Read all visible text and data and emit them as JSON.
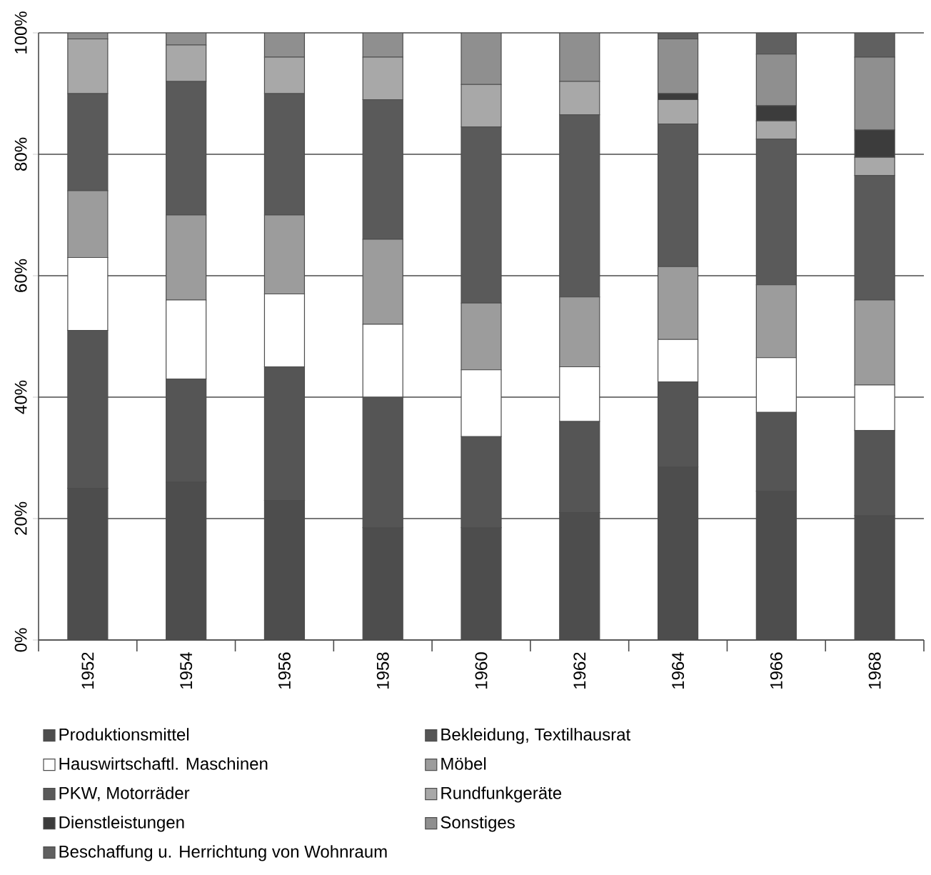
{
  "chart_data": {
    "type": "bar",
    "stacked": true,
    "categories": [
      "1952",
      "1954",
      "1956",
      "1958",
      "1960",
      "1962",
      "1964",
      "1966",
      "1968"
    ],
    "series": [
      {
        "name": "Produktionsmittel",
        "color": "#4d4d4d",
        "values": [
          25,
          26,
          23,
          18.5,
          18.5,
          21,
          28.5,
          24.5,
          20.5
        ]
      },
      {
        "name": "Bekleidung, Textilhausrat",
        "color": "#555555",
        "values": [
          26,
          17,
          22,
          21.5,
          15,
          15,
          14,
          13,
          14
        ]
      },
      {
        "name": "Hauswirtschaftl. Maschinen",
        "color": "#ffffff",
        "values": [
          12,
          13,
          12,
          12,
          11,
          9,
          7,
          9,
          7.5
        ]
      },
      {
        "name": "Möbel",
        "color": "#9c9c9c",
        "values": [
          11,
          14,
          13,
          14,
          11,
          11.5,
          12,
          12,
          14
        ]
      },
      {
        "name": "PKW, Motorräder",
        "color": "#5a5a5a",
        "values": [
          16,
          22,
          20,
          23,
          29,
          30,
          23.5,
          24,
          20.5
        ]
      },
      {
        "name": "Rundfunkgeräte",
        "color": "#a8a8a8",
        "values": [
          9,
          6,
          6,
          7,
          7,
          5.5,
          4,
          3,
          3
        ]
      },
      {
        "name": "Dienstleistungen",
        "color": "#3c3c3c",
        "values": [
          0,
          0,
          0,
          0,
          0,
          0,
          1,
          2.5,
          4.5
        ]
      },
      {
        "name": "Sonstiges",
        "color": "#8f8f8f",
        "values": [
          1,
          2,
          4,
          4,
          8.5,
          8,
          9,
          8.5,
          12
        ]
      },
      {
        "name": "Beschaffung u. Herrichtung von Wohnraum",
        "color": "#606060",
        "values": [
          0,
          0,
          0,
          0,
          0,
          0,
          1,
          3.5,
          4
        ]
      }
    ],
    "ylim": [
      0,
      100
    ],
    "yticks": [
      {
        "value": 0,
        "label": "0%"
      },
      {
        "value": 20,
        "label": "20%"
      },
      {
        "value": 40,
        "label": "40%"
      },
      {
        "value": 60,
        "label": "60%"
      },
      {
        "value": 80,
        "label": "80%"
      },
      {
        "value": 100,
        "label": "100%"
      }
    ],
    "grid": "y",
    "legend": "bottom"
  }
}
